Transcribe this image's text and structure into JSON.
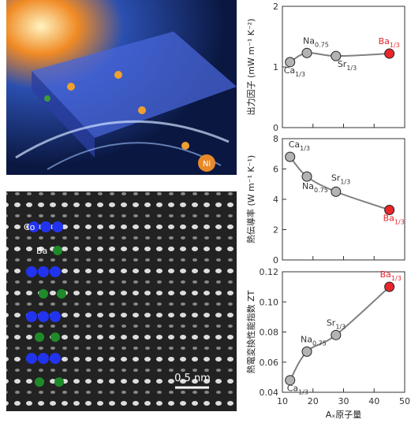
{
  "images": {
    "material_label": "Ni",
    "micrograph_labels": [
      "Co",
      "Ba"
    ],
    "scale_bar": "0.5 nm"
  },
  "chart_data": [
    {
      "type": "line",
      "ylabel": "出力因子 (mW m⁻¹ K⁻²)",
      "x": [
        12.5,
        18,
        27.5,
        45
      ],
      "values": [
        1.08,
        1.23,
        1.18,
        1.22
      ],
      "point_labels": [
        {
          "text": "Ca",
          "sub": "1/3"
        },
        {
          "text": "Na",
          "sub": "0.75"
        },
        {
          "text": "Sr",
          "sub": "1/3"
        },
        {
          "text": "Ba",
          "sub": "1/3"
        }
      ],
      "marker_colors": [
        "#b3b3b3",
        "#b3b3b3",
        "#b3b3b3",
        "#e8262b"
      ],
      "label_colors": [
        "#333333",
        "#333333",
        "#333333",
        "#e8262b"
      ],
      "line_color": "#808080",
      "xlim": [
        10,
        50
      ],
      "xticks": [
        10,
        20,
        30,
        40,
        50
      ],
      "ylim": [
        0,
        2
      ],
      "yticks": [
        0,
        1,
        2
      ]
    },
    {
      "type": "line",
      "ylabel": "熱伝導率 (W m⁻¹ K⁻¹)",
      "x": [
        12.5,
        18,
        27.5,
        45
      ],
      "values": [
        6.8,
        5.5,
        4.5,
        3.3
      ],
      "point_labels": [
        {
          "text": "Ca",
          "sub": "1/3"
        },
        {
          "text": "Na",
          "sub": "0.75"
        },
        {
          "text": "Sr",
          "sub": "1/3"
        },
        {
          "text": "Ba",
          "sub": "1/3"
        }
      ],
      "marker_colors": [
        "#b3b3b3",
        "#b3b3b3",
        "#b3b3b3",
        "#e8262b"
      ],
      "label_colors": [
        "#333333",
        "#333333",
        "#333333",
        "#e8262b"
      ],
      "line_color": "#808080",
      "xlim": [
        10,
        50
      ],
      "xticks": [
        10,
        20,
        30,
        40,
        50
      ],
      "ylim": [
        0,
        8
      ],
      "yticks": [
        0,
        2,
        4,
        6,
        8
      ]
    },
    {
      "type": "line",
      "ylabel": "熱電変換性能指数 ZT",
      "xlabel": "Aₓ原子量",
      "x": [
        12.5,
        18,
        27.5,
        45
      ],
      "values": [
        0.048,
        0.067,
        0.078,
        0.11
      ],
      "point_labels": [
        {
          "text": "Ca",
          "sub": "1/3"
        },
        {
          "text": "Na",
          "sub": "0.75"
        },
        {
          "text": "Sr",
          "sub": "1/3"
        },
        {
          "text": "Ba",
          "sub": "1/3"
        }
      ],
      "marker_colors": [
        "#b3b3b3",
        "#b3b3b3",
        "#b3b3b3",
        "#e8262b"
      ],
      "label_colors": [
        "#333333",
        "#333333",
        "#333333",
        "#e8262b"
      ],
      "line_color": "#808080",
      "xlim": [
        10,
        50
      ],
      "xticks": [
        10,
        20,
        30,
        40,
        50
      ],
      "ylim": [
        0.04,
        0.12
      ],
      "yticks": [
        0.04,
        0.06,
        0.08,
        {
          "value": 0.1,
          "label": "0.10"
        },
        0.12
      ]
    }
  ]
}
